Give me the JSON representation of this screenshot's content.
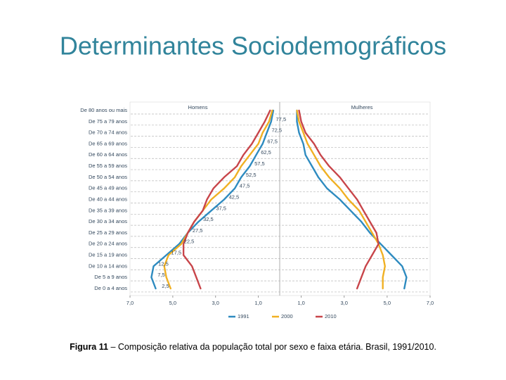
{
  "slide": {
    "title": "Determinantes Sociodemográficos",
    "caption_label": "Figura 11",
    "caption_text": "– Composição relativa da população total por sexo e faixa etária. Brasil, 1991/2010."
  },
  "chart_data": {
    "type": "line",
    "categories": [
      "De 80 anos ou mais",
      "De 75 a 79 anos",
      "De 70 a 74 anos",
      "De 65 a 69 anos",
      "De 60 a 64 anos",
      "De 55 a 59 anos",
      "De 50 a 54 anos",
      "De 45 a 49 anos",
      "De 40 a 44 anos",
      "De 35 a 39 anos",
      "De 30 a 34 anos",
      "De 25 a 29 anos",
      "De 20 a 24 anos",
      "De 15 a 19 anos",
      "De 10 a 14 anos",
      "De 5 a 9 anos",
      "De 0 a 4 anos"
    ],
    "age_midpoints": [
      "77,5",
      "72,5",
      "67,5",
      "62,5",
      "57,5",
      "52,5",
      "47,5",
      "42,5",
      "37,5",
      "32,5",
      "27,5",
      "22,5",
      "17,5",
      "12,5",
      "7,5",
      "2,5"
    ],
    "panels": [
      {
        "title": "Homens",
        "xlim": [
          7,
          0
        ],
        "xticks": [
          {
            "value": 7,
            "label": "7,0"
          },
          {
            "value": 5,
            "label": "5,0"
          },
          {
            "value": 3,
            "label": "3,0"
          },
          {
            "value": 1,
            "label": "1,0"
          }
        ]
      },
      {
        "title": "Mulheres",
        "xlim": [
          0,
          7
        ],
        "xticks": [
          {
            "value": 1,
            "label": "1,0"
          },
          {
            "value": 3,
            "label": "3,0"
          },
          {
            "value": 5,
            "label": "5,0"
          },
          {
            "value": 7,
            "label": "7,0"
          }
        ]
      }
    ],
    "series": [
      {
        "name": "1991",
        "color": "#2e8bc0",
        "men": [
          0.3,
          0.4,
          0.6,
          0.8,
          1.1,
          1.4,
          1.8,
          2.1,
          2.6,
          3.2,
          3.8,
          4.3,
          4.7,
          5.3,
          5.9,
          6.0,
          5.8
        ],
        "women": [
          0.8,
          0.8,
          0.9,
          1.1,
          1.2,
          1.5,
          1.8,
          2.2,
          2.8,
          3.3,
          3.8,
          4.2,
          4.7,
          5.2,
          5.7,
          5.9,
          5.8
        ]
      },
      {
        "name": "2000",
        "color": "#f0b023",
        "men": [
          0.35,
          0.5,
          0.8,
          1.0,
          1.4,
          1.8,
          2.1,
          2.6,
          3.2,
          3.6,
          4.0,
          4.3,
          4.6,
          5.2,
          5.4,
          5.3,
          5.1
        ],
        "women": [
          0.8,
          0.9,
          1.1,
          1.3,
          1.6,
          1.9,
          2.3,
          2.8,
          3.2,
          3.7,
          4.0,
          4.3,
          4.6,
          4.8,
          4.9,
          4.8,
          4.8
        ]
      },
      {
        "name": "2010",
        "color": "#c8454a",
        "men": [
          0.45,
          0.7,
          1.0,
          1.3,
          1.7,
          2.0,
          2.6,
          3.1,
          3.4,
          3.6,
          4.0,
          4.3,
          4.5,
          4.5,
          4.1,
          3.9,
          3.7
        ],
        "women": [
          0.9,
          1.0,
          1.2,
          1.6,
          1.9,
          2.3,
          2.8,
          3.2,
          3.6,
          3.9,
          4.2,
          4.5,
          4.6,
          4.3,
          4.0,
          3.8,
          3.6
        ]
      }
    ],
    "grid": true
  }
}
